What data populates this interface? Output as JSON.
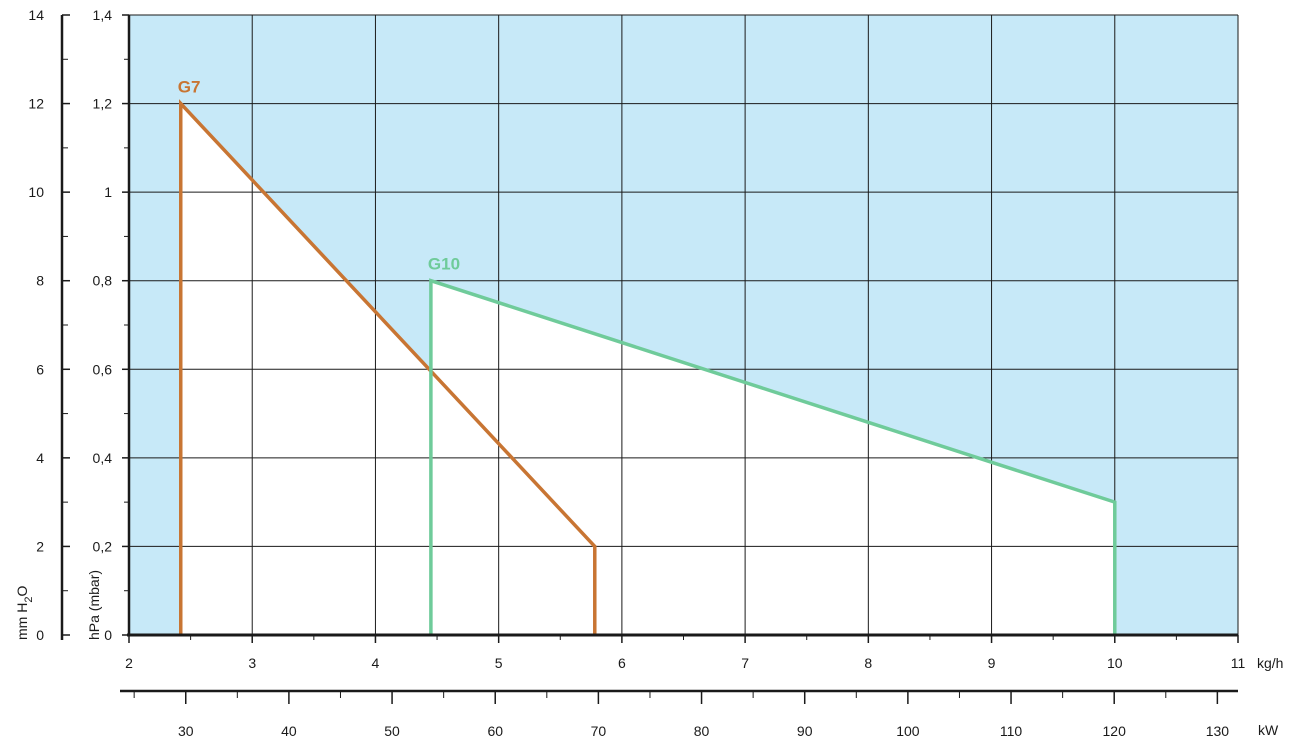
{
  "chart_data": {
    "type": "line",
    "title": "",
    "colors": {
      "background": "#c7e9f8",
      "working_area": "#ffffff",
      "grid": "#1a1a1a",
      "G7": "#c87533",
      "G10": "#6fcb9a"
    },
    "x": {
      "label": "kg/h",
      "range": [
        2,
        11
      ],
      "ticks": [
        2,
        3,
        4,
        5,
        6,
        7,
        8,
        9,
        10,
        11
      ]
    },
    "x2": {
      "label": "kW",
      "range": [
        24.5,
        132
      ],
      "ticks": [
        30,
        40,
        50,
        60,
        70,
        80,
        90,
        100,
        110,
        120,
        130
      ]
    },
    "y": {
      "label": "hPa (mbar)",
      "range": [
        0,
        1.4
      ],
      "ticks": [
        "0",
        "0,2",
        "0,4",
        "0,6",
        "0,8",
        "1",
        "1,2",
        "1,4"
      ]
    },
    "y2": {
      "label_prefix": "mm H",
      "label_sub": "2",
      "label_suffix": "O",
      "range": [
        0,
        14
      ],
      "ticks": [
        "0",
        "2",
        "4",
        "6",
        "8",
        "10",
        "12",
        "14"
      ]
    },
    "grid": true,
    "series": [
      {
        "name": "G7",
        "points": [
          [
            2.42,
            0
          ],
          [
            2.42,
            1.2
          ],
          [
            5.78,
            0.2
          ],
          [
            5.78,
            0
          ]
        ]
      },
      {
        "name": "G10",
        "points": [
          [
            4.45,
            0
          ],
          [
            4.45,
            0.8
          ],
          [
            10,
            0.3
          ],
          [
            10,
            0
          ]
        ]
      }
    ]
  }
}
